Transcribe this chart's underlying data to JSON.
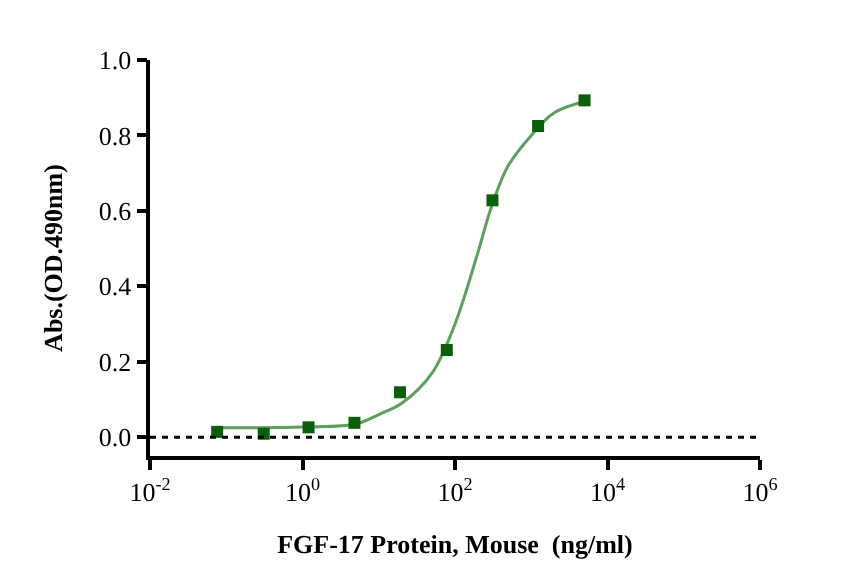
{
  "chart_data": {
    "type": "scatter",
    "xlabel": "FGF-17 Protein, Mouse  (ng/ml)",
    "ylabel": "Abs.(OD.490nm)",
    "log": "x",
    "xlim": [
      0.01,
      1000000
    ],
    "xticks": [
      {
        "value": 0.01,
        "label": "10$^{-2}$"
      },
      {
        "value": 1,
        "label": "10$^{0}$"
      },
      {
        "value": 100,
        "label": "10$^{2}$"
      },
      {
        "value": 10000,
        "label": "10$^{4}$"
      },
      {
        "value": 1000000,
        "label": "10$^{6}$"
      }
    ],
    "ylim": [
      -0.05,
      1.0
    ],
    "yticks": [
      {
        "value": 0,
        "label": "0.0"
      },
      0.2,
      0.4,
      0.6,
      0.8,
      {
        "value": 1,
        "label": "1.0"
      }
    ],
    "series": [
      {
        "type": "line",
        "color": "#5e9e5e",
        "marker": "none",
        "line_style": "solid",
        "x": [
          0.076,
          1,
          5,
          10,
          20,
          50,
          100,
          200,
          300,
          500,
          1000,
          2000,
          5000
        ],
        "values": [
          0.025,
          0.027,
          0.035,
          0.06,
          0.09,
          0.17,
          0.3,
          0.49,
          0.61,
          0.72,
          0.8,
          0.86,
          0.89
        ]
      },
      {
        "color": "#0b5e0b",
        "marker": "square",
        "x": [
          0.076,
          0.31,
          1.2,
          4.8,
          19,
          78,
          310,
          1230,
          5000
        ],
        "values": [
          0.014,
          0.009,
          0.026,
          0.038,
          0.119,
          0.231,
          0.628,
          0.825,
          0.893
        ]
      }
    ],
    "ref_lines": [
      {
        "axis": "y",
        "value": 0,
        "color": "#000000",
        "line_style": "dotted"
      }
    ]
  }
}
